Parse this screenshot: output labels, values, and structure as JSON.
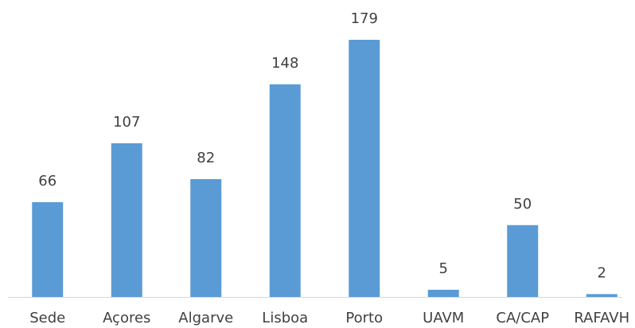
{
  "chart_data": {
    "type": "bar",
    "categories": [
      "Sede",
      "Açores",
      "Algarve",
      "Lisboa",
      "Porto",
      "UAVM",
      "CA/CAP",
      "RAFAVH"
    ],
    "values": [
      66,
      107,
      82,
      148,
      179,
      5,
      50,
      2
    ],
    "color": "#5b9bd5",
    "grid": false
  }
}
